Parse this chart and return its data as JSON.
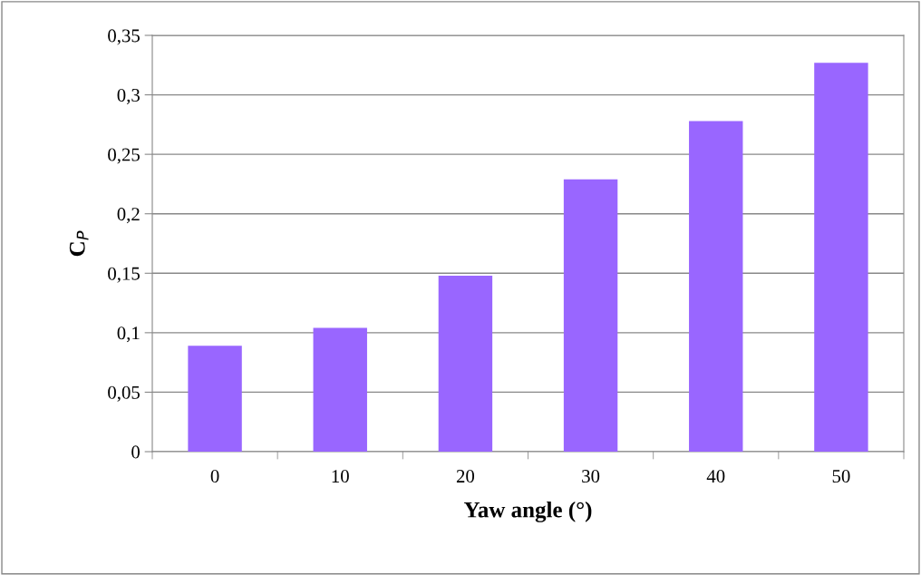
{
  "chart_data": {
    "type": "bar",
    "xlabel": "Yaw angle (°)",
    "ylabel": "C$_{P}$",
    "categories": [
      "0",
      "10",
      "20",
      "30",
      "40",
      "50"
    ],
    "values": [
      0.089,
      0.104,
      0.148,
      0.229,
      0.278,
      0.327
    ],
    "color": "#9966ff",
    "ylim": [
      0,
      0.35
    ],
    "yticks": [
      {
        "value": 0,
        "label": "0"
      },
      {
        "value": 0.05,
        "label": "0,05"
      },
      {
        "value": 0.1,
        "label": "0,1"
      },
      {
        "value": 0.15,
        "label": "0,15"
      },
      {
        "value": 0.2,
        "label": "0,2"
      },
      {
        "value": 0.25,
        "label": "0,25"
      },
      {
        "value": 0.3,
        "label": "0,3"
      },
      {
        "value": 0.35,
        "label": "0,35"
      }
    ],
    "grid": "y",
    "legend": false
  }
}
